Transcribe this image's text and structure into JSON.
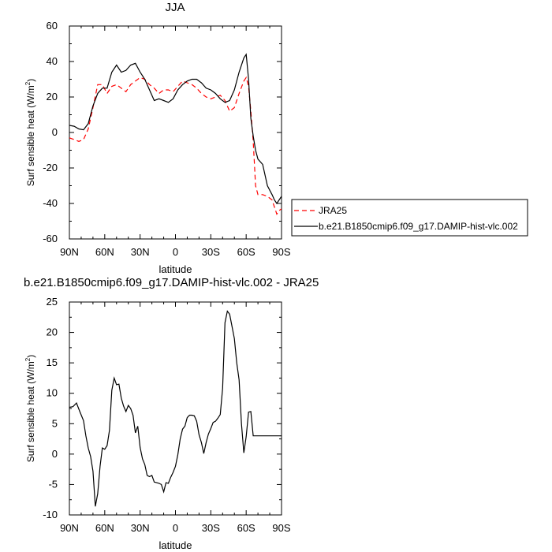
{
  "chart_data": [
    {
      "type": "line",
      "title": "JJA",
      "xlabel": "latitude",
      "ylabel": "Surf sensible heat (W/m",
      "ylabel_sup": "2",
      "ylabel_close": ")",
      "xlim": [
        -90,
        90
      ],
      "ylim": [
        -60,
        60
      ],
      "x_ticks": [
        {
          "v": -90,
          "label": "90N"
        },
        {
          "v": -60,
          "label": "60N"
        },
        {
          "v": -30,
          "label": "30N"
        },
        {
          "v": 0,
          "label": "0"
        },
        {
          "v": 30,
          "label": "30S"
        },
        {
          "v": 60,
          "label": "60S"
        },
        {
          "v": 90,
          "label": "90S"
        }
      ],
      "y_ticks": [
        -60,
        -40,
        -20,
        0,
        20,
        40,
        60
      ],
      "grid": false,
      "legend": "right",
      "series": [
        {
          "name": "JRA25",
          "color": "#ff0000",
          "dash": "dashed",
          "x": [
            -90,
            -86,
            -82,
            -78,
            -74,
            -70,
            -66,
            -62,
            -58,
            -54,
            -50,
            -46,
            -42,
            -38,
            -34,
            -30,
            -26,
            -22,
            -18,
            -14,
            -10,
            -6,
            -2,
            2,
            6,
            10,
            14,
            18,
            22,
            26,
            30,
            34,
            38,
            42,
            46,
            50,
            54,
            58,
            60,
            62,
            64,
            66,
            68,
            70,
            74,
            78,
            82,
            84,
            86,
            88,
            90
          ],
          "y": [
            -3,
            -4,
            -5,
            -4,
            2,
            14,
            27,
            27,
            22,
            26,
            27,
            25,
            23,
            27,
            29,
            31,
            30,
            27,
            25,
            22,
            24,
            24,
            23,
            26,
            29,
            28,
            27,
            25,
            22,
            20,
            19,
            20,
            21,
            18,
            12,
            14,
            22,
            29,
            31,
            26,
            12,
            -5,
            -30,
            -35,
            -35,
            -36,
            -38,
            -42,
            -46,
            -44,
            -43
          ]
        },
        {
          "name": "b.e21.B1850cmip6.f09_g17.DAMIP-hist-vlc.002",
          "color": "#000000",
          "dash": "solid",
          "x": [
            -90,
            -86,
            -82,
            -78,
            -74,
            -70,
            -66,
            -62,
            -58,
            -54,
            -50,
            -46,
            -42,
            -38,
            -34,
            -30,
            -26,
            -22,
            -18,
            -14,
            -10,
            -6,
            -2,
            2,
            6,
            10,
            14,
            18,
            22,
            26,
            30,
            34,
            38,
            42,
            46,
            50,
            54,
            58,
            60,
            62,
            64,
            66,
            68,
            70,
            74,
            78,
            82,
            84,
            86,
            88,
            90
          ],
          "y": [
            4,
            3.5,
            2,
            1.5,
            5,
            15,
            22,
            25,
            25,
            34,
            38,
            34,
            35,
            38,
            39,
            34,
            30,
            24,
            18,
            19,
            18,
            17,
            19,
            24,
            27,
            29,
            30,
            30,
            28,
            25,
            24,
            22,
            19,
            17,
            18,
            24,
            34,
            42,
            44,
            30,
            8,
            -2,
            -10,
            -15,
            -18,
            -30,
            -35,
            -38,
            -40,
            -38,
            -36
          ]
        }
      ]
    },
    {
      "type": "line",
      "title": "b.e21.B1850cmip6.f09_g17.DAMIP-hist-vlc.002 - JRA25",
      "xlabel": "latitude",
      "ylabel": "Surf sensible heat (W/m",
      "ylabel_sup": "2",
      "ylabel_close": ")",
      "xlim": [
        -90,
        90
      ],
      "ylim": [
        -10,
        25
      ],
      "x_ticks": [
        {
          "v": -90,
          "label": "90N"
        },
        {
          "v": -60,
          "label": "60N"
        },
        {
          "v": -30,
          "label": "30N"
        },
        {
          "v": 0,
          "label": "0"
        },
        {
          "v": 30,
          "label": "30S"
        },
        {
          "v": 60,
          "label": "60S"
        },
        {
          "v": 90,
          "label": "90S"
        }
      ],
      "y_ticks": [
        -10,
        -5,
        0,
        5,
        10,
        15,
        20,
        25
      ],
      "grid": false,
      "series": [
        {
          "color": "#000000",
          "dash": "solid",
          "x": [
            -90,
            -87,
            -84,
            -81,
            -78,
            -76,
            -74,
            -72,
            -70,
            -68,
            -66,
            -64,
            -62,
            -60,
            -58,
            -56,
            -54,
            -52,
            -50,
            -48,
            -46,
            -44,
            -42,
            -40,
            -38,
            -36,
            -34,
            -32,
            -30,
            -28,
            -26,
            -24,
            -22,
            -20,
            -18,
            -16,
            -14,
            -12,
            -10,
            -8,
            -6,
            -4,
            -2,
            0,
            2,
            4,
            6,
            8,
            10,
            12,
            14,
            16,
            18,
            20,
            22,
            24,
            26,
            28,
            30,
            32,
            34,
            36,
            38,
            40,
            42,
            44,
            46,
            48,
            50,
            52,
            54,
            56,
            58,
            60,
            62,
            64,
            66,
            68,
            70,
            72,
            74,
            76,
            78,
            80,
            82,
            84,
            86,
            88,
            90
          ],
          "y": [
            7.7,
            7.8,
            8.4,
            6.9,
            5.5,
            3.0,
            1.0,
            -0.4,
            -2.8,
            -8.6,
            -6.5,
            -2.0,
            1.0,
            0.8,
            1.4,
            3.9,
            10.5,
            12.5,
            11.4,
            11.5,
            9.2,
            7.9,
            7.0,
            8.0,
            7.5,
            6.4,
            3.5,
            4.6,
            1.1,
            -0.8,
            -1.7,
            -3.5,
            -3.7,
            -3.5,
            -4.6,
            -4.7,
            -4.8,
            -5.0,
            -6.2,
            -4.7,
            -4.8,
            -3.8,
            -3.0,
            -2.0,
            -0.1,
            2.5,
            4.1,
            4.6,
            6.0,
            6.4,
            6.4,
            6.3,
            5.4,
            3.2,
            1.9,
            0.1,
            1.9,
            3.3,
            4.2,
            5.2,
            5.4,
            5.9,
            6.5,
            10.8,
            21.6,
            23.5,
            23.0,
            21.0,
            19.0,
            15.0,
            12.2,
            5.0,
            0.2,
            2.9,
            6.9,
            7.0,
            3.0,
            3.0,
            3.0,
            3.0,
            3.0,
            3.0,
            3.0,
            3.0,
            3.0,
            3.0,
            3.0,
            3.0,
            3.0
          ]
        }
      ]
    }
  ]
}
